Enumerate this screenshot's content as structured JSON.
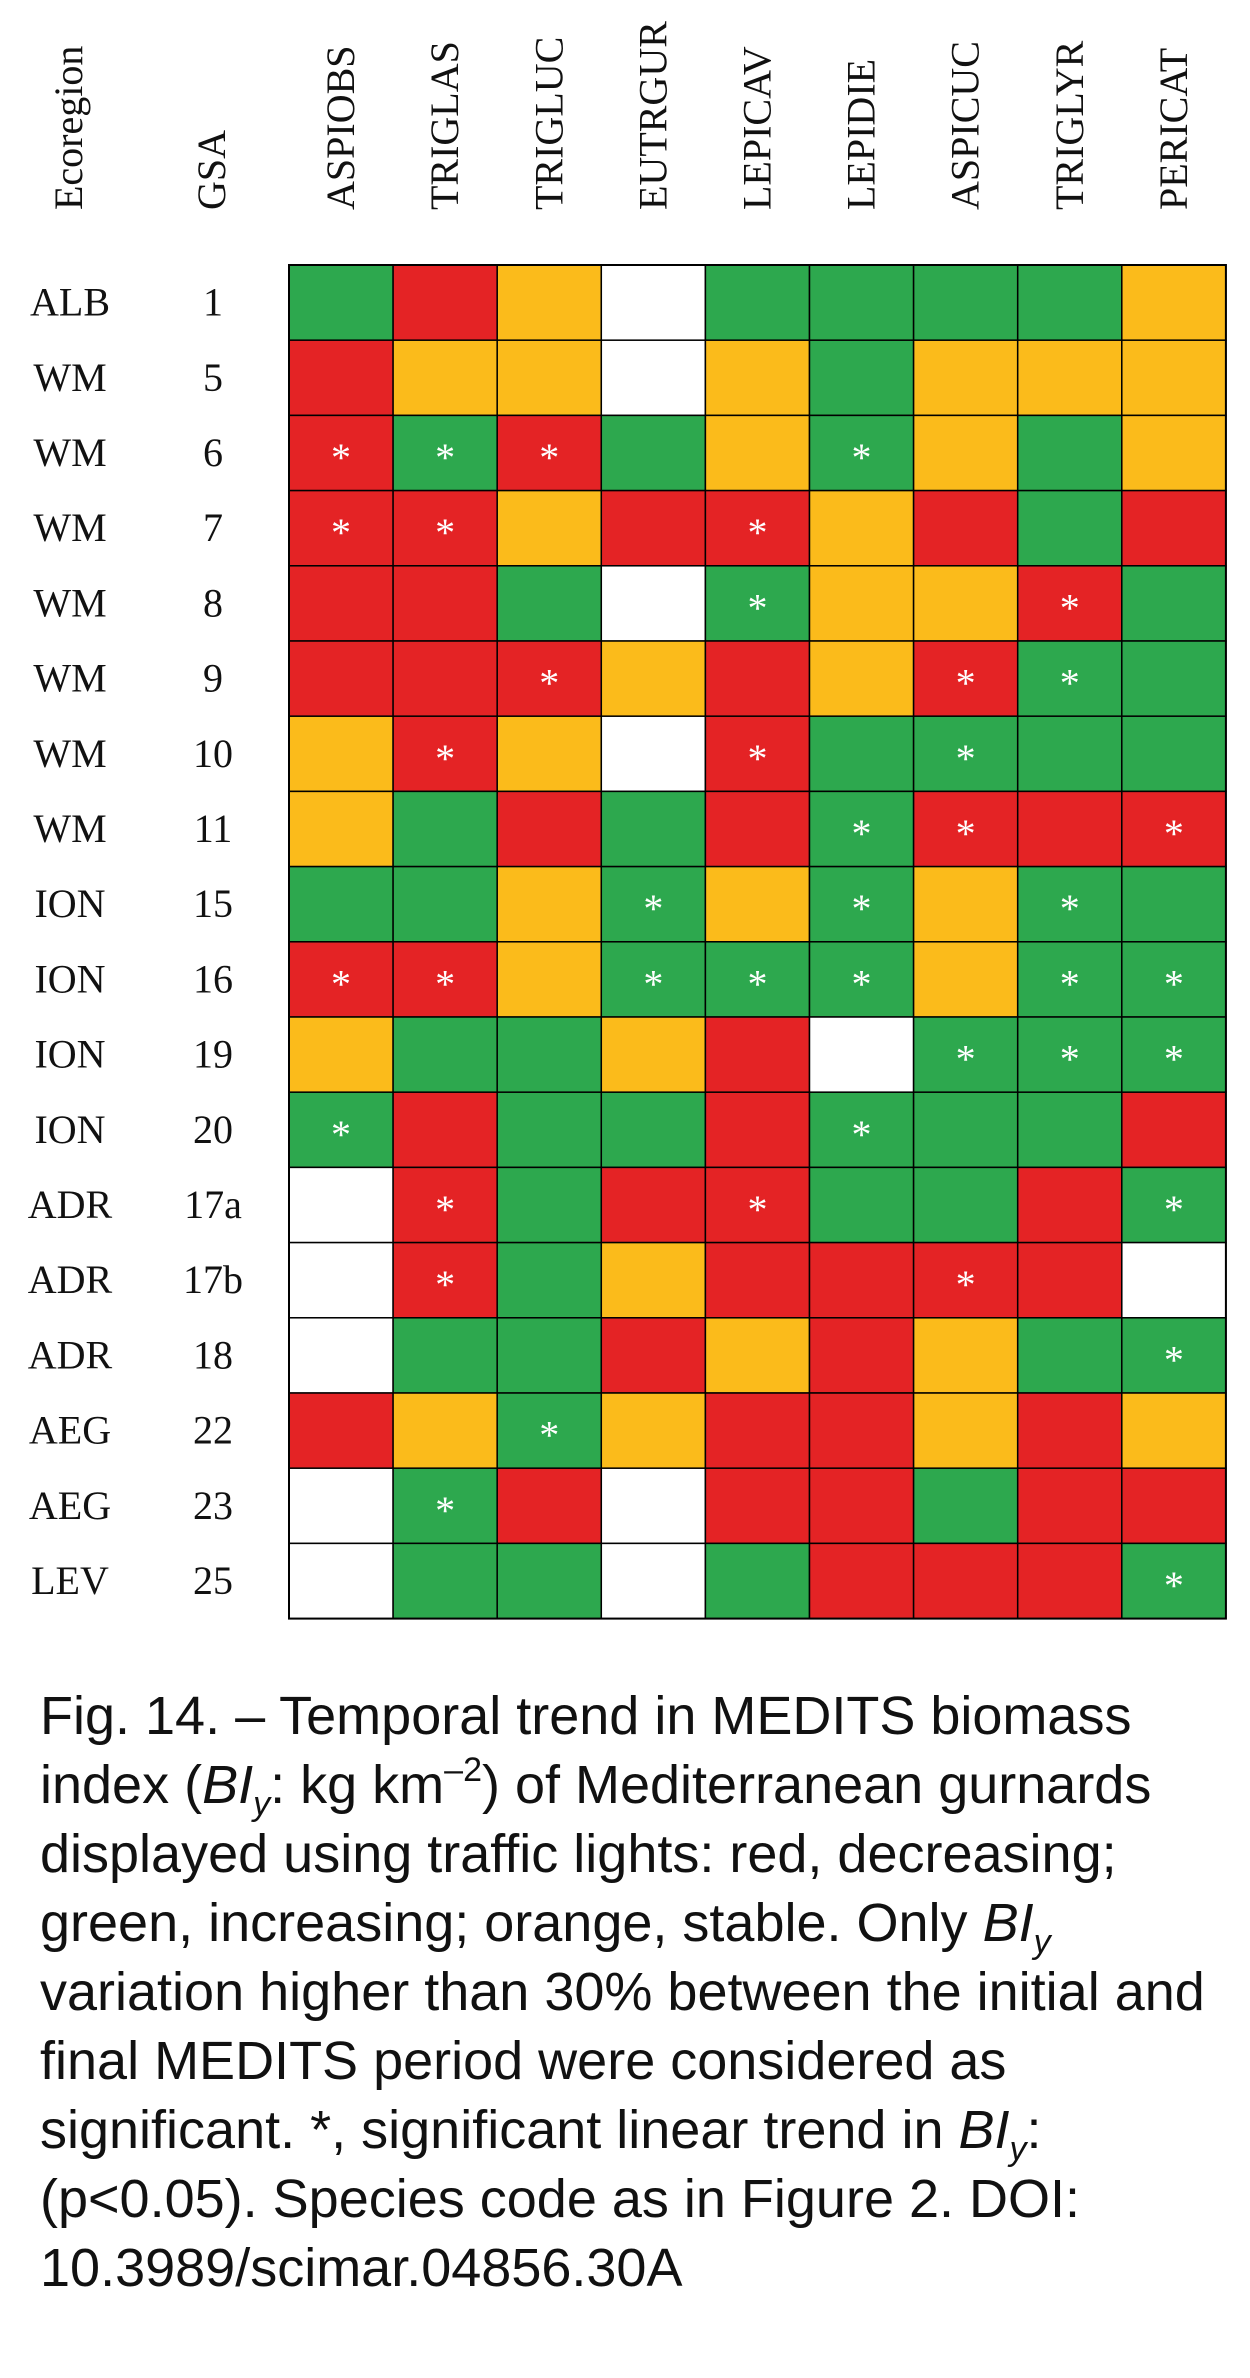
{
  "chart_data": {
    "type": "heatmap",
    "header": {
      "ecoregion": "Ecoregion",
      "gsa": "GSA"
    },
    "species": [
      "ASPIOBS",
      "TRIGLAS",
      "TRIGLUC",
      "EUTRGUR",
      "LEPICAV",
      "LEPIDIE",
      "ASPICUC",
      "TRIGLYR",
      "PERICAT"
    ],
    "colors": {
      "R": "#e42325",
      "G": "#2da84e",
      "O": "#fbbb1b",
      "W": "#ffffff",
      "star": "#ffffff",
      "grid": "#000000"
    },
    "legend": {
      "R": "decreasing",
      "G": "increasing",
      "O": "stable",
      "star": "significant linear trend"
    },
    "rows": [
      {
        "ecoregion": "ALB",
        "gsa": "1",
        "cells": [
          "G",
          "R",
          "O",
          "W",
          "G",
          "G",
          "G",
          "G",
          "O"
        ],
        "sig": [
          0,
          0,
          0,
          0,
          0,
          0,
          0,
          0,
          0
        ]
      },
      {
        "ecoregion": "WM",
        "gsa": "5",
        "cells": [
          "R",
          "O",
          "O",
          "W",
          "O",
          "G",
          "O",
          "O",
          "O"
        ],
        "sig": [
          0,
          0,
          0,
          0,
          0,
          0,
          0,
          0,
          0
        ]
      },
      {
        "ecoregion": "WM",
        "gsa": "6",
        "cells": [
          "R",
          "G",
          "R",
          "G",
          "O",
          "G",
          "O",
          "G",
          "O"
        ],
        "sig": [
          1,
          1,
          1,
          0,
          0,
          1,
          0,
          0,
          0
        ]
      },
      {
        "ecoregion": "WM",
        "gsa": "7",
        "cells": [
          "R",
          "R",
          "O",
          "R",
          "R",
          "O",
          "R",
          "G",
          "R"
        ],
        "sig": [
          1,
          1,
          0,
          0,
          1,
          0,
          0,
          0,
          0
        ]
      },
      {
        "ecoregion": "WM",
        "gsa": "8",
        "cells": [
          "R",
          "R",
          "G",
          "W",
          "G",
          "O",
          "O",
          "R",
          "G"
        ],
        "sig": [
          0,
          0,
          0,
          0,
          1,
          0,
          0,
          1,
          0
        ]
      },
      {
        "ecoregion": "WM",
        "gsa": "9",
        "cells": [
          "R",
          "R",
          "R",
          "O",
          "R",
          "O",
          "R",
          "G",
          "G"
        ],
        "sig": [
          0,
          0,
          1,
          0,
          0,
          0,
          1,
          1,
          0
        ]
      },
      {
        "ecoregion": "WM",
        "gsa": "10",
        "cells": [
          "O",
          "R",
          "O",
          "W",
          "R",
          "G",
          "G",
          "G",
          "G"
        ],
        "sig": [
          0,
          1,
          0,
          0,
          1,
          0,
          1,
          0,
          0
        ]
      },
      {
        "ecoregion": "WM",
        "gsa": "11",
        "cells": [
          "O",
          "G",
          "R",
          "G",
          "R",
          "G",
          "R",
          "R",
          "R"
        ],
        "sig": [
          0,
          0,
          0,
          0,
          0,
          1,
          1,
          0,
          1
        ]
      },
      {
        "ecoregion": "ION",
        "gsa": "15",
        "cells": [
          "G",
          "G",
          "O",
          "G",
          "O",
          "G",
          "O",
          "G",
          "G"
        ],
        "sig": [
          0,
          0,
          0,
          1,
          0,
          1,
          0,
          1,
          0
        ]
      },
      {
        "ecoregion": "ION",
        "gsa": "16",
        "cells": [
          "R",
          "R",
          "O",
          "G",
          "G",
          "G",
          "O",
          "G",
          "G"
        ],
        "sig": [
          1,
          1,
          0,
          1,
          1,
          1,
          0,
          1,
          1
        ]
      },
      {
        "ecoregion": "ION",
        "gsa": "19",
        "cells": [
          "O",
          "G",
          "G",
          "O",
          "R",
          "W",
          "G",
          "G",
          "G"
        ],
        "sig": [
          0,
          0,
          0,
          0,
          0,
          0,
          1,
          1,
          1
        ]
      },
      {
        "ecoregion": "ION",
        "gsa": "20",
        "cells": [
          "G",
          "R",
          "G",
          "G",
          "R",
          "G",
          "G",
          "G",
          "R"
        ],
        "sig": [
          1,
          0,
          0,
          0,
          0,
          1,
          0,
          0,
          0
        ]
      },
      {
        "ecoregion": "ADR",
        "gsa": "17a",
        "cells": [
          "W",
          "R",
          "G",
          "R",
          "R",
          "G",
          "G",
          "R",
          "G"
        ],
        "sig": [
          0,
          1,
          0,
          0,
          1,
          0,
          0,
          0,
          1
        ]
      },
      {
        "ecoregion": "ADR",
        "gsa": "17b",
        "cells": [
          "W",
          "R",
          "G",
          "O",
          "R",
          "R",
          "R",
          "R",
          "W"
        ],
        "sig": [
          0,
          1,
          0,
          0,
          0,
          0,
          1,
          0,
          0
        ]
      },
      {
        "ecoregion": "ADR",
        "gsa": "18",
        "cells": [
          "W",
          "G",
          "G",
          "R",
          "O",
          "R",
          "O",
          "G",
          "G"
        ],
        "sig": [
          0,
          0,
          0,
          0,
          0,
          0,
          0,
          0,
          1
        ]
      },
      {
        "ecoregion": "AEG",
        "gsa": "22",
        "cells": [
          "R",
          "O",
          "G",
          "O",
          "R",
          "R",
          "O",
          "R",
          "O"
        ],
        "sig": [
          0,
          0,
          1,
          0,
          0,
          0,
          0,
          0,
          0
        ]
      },
      {
        "ecoregion": "AEG",
        "gsa": "23",
        "cells": [
          "W",
          "G",
          "R",
          "W",
          "R",
          "R",
          "G",
          "R",
          "R"
        ],
        "sig": [
          0,
          1,
          0,
          0,
          0,
          0,
          0,
          0,
          0
        ]
      },
      {
        "ecoregion": "LEV",
        "gsa": "25",
        "cells": [
          "W",
          "G",
          "G",
          "W",
          "G",
          "R",
          "R",
          "R",
          "G"
        ],
        "sig": [
          0,
          0,
          0,
          0,
          0,
          0,
          0,
          0,
          1
        ]
      }
    ]
  },
  "caption": {
    "p1": "Fig. 14. – Temporal trend in MEDITS biomass index (",
    "bi": "BI",
    "sub": "y",
    "p2": ": kg km",
    "sup": "–2",
    "p3": ") of Mediterranean gurnards displayed using traffic lights: red, decreasing; green, increasing; orange, stable. Only ",
    "p4": " variation higher than 30% between the initial and final MEDITS period were considered as significant. *, significant linear trend in ",
    "p5": ": (p<0.05). Species code as in Figure 2. DOI: 10.3989/scimar.04856.30A"
  }
}
